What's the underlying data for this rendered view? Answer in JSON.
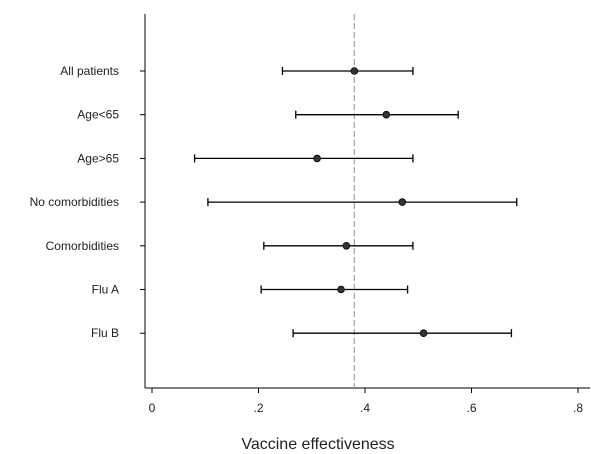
{
  "chart_data": {
    "type": "forest",
    "title": "",
    "xlabel": "Vaccine effectiveness",
    "ylabel": "",
    "xlim": [
      0,
      0.8
    ],
    "x_ticks": [
      0,
      0.2,
      0.4,
      0.6,
      0.8
    ],
    "x_tick_labels": [
      "0",
      ".2",
      ".4",
      ".6",
      ".8"
    ],
    "reference_line": 0.38,
    "grid": false,
    "categories": [
      "All patients",
      "Age<65",
      "Age>65",
      "No comorbidities",
      "Comorbidities",
      "Flu A",
      "Flu B"
    ],
    "estimates": [
      {
        "label": "All patients",
        "point": 0.38,
        "lower": 0.245,
        "upper": 0.49
      },
      {
        "label": "Age<65",
        "point": 0.44,
        "lower": 0.27,
        "upper": 0.575
      },
      {
        "label": "Age>65",
        "point": 0.31,
        "lower": 0.08,
        "upper": 0.49
      },
      {
        "label": "No comorbidities",
        "point": 0.47,
        "lower": 0.105,
        "upper": 0.685
      },
      {
        "label": "Comorbidities",
        "point": 0.365,
        "lower": 0.21,
        "upper": 0.49
      },
      {
        "label": "Flu A",
        "point": 0.355,
        "lower": 0.205,
        "upper": 0.48
      },
      {
        "label": "Flu B",
        "point": 0.51,
        "lower": 0.265,
        "upper": 0.675
      }
    ]
  }
}
